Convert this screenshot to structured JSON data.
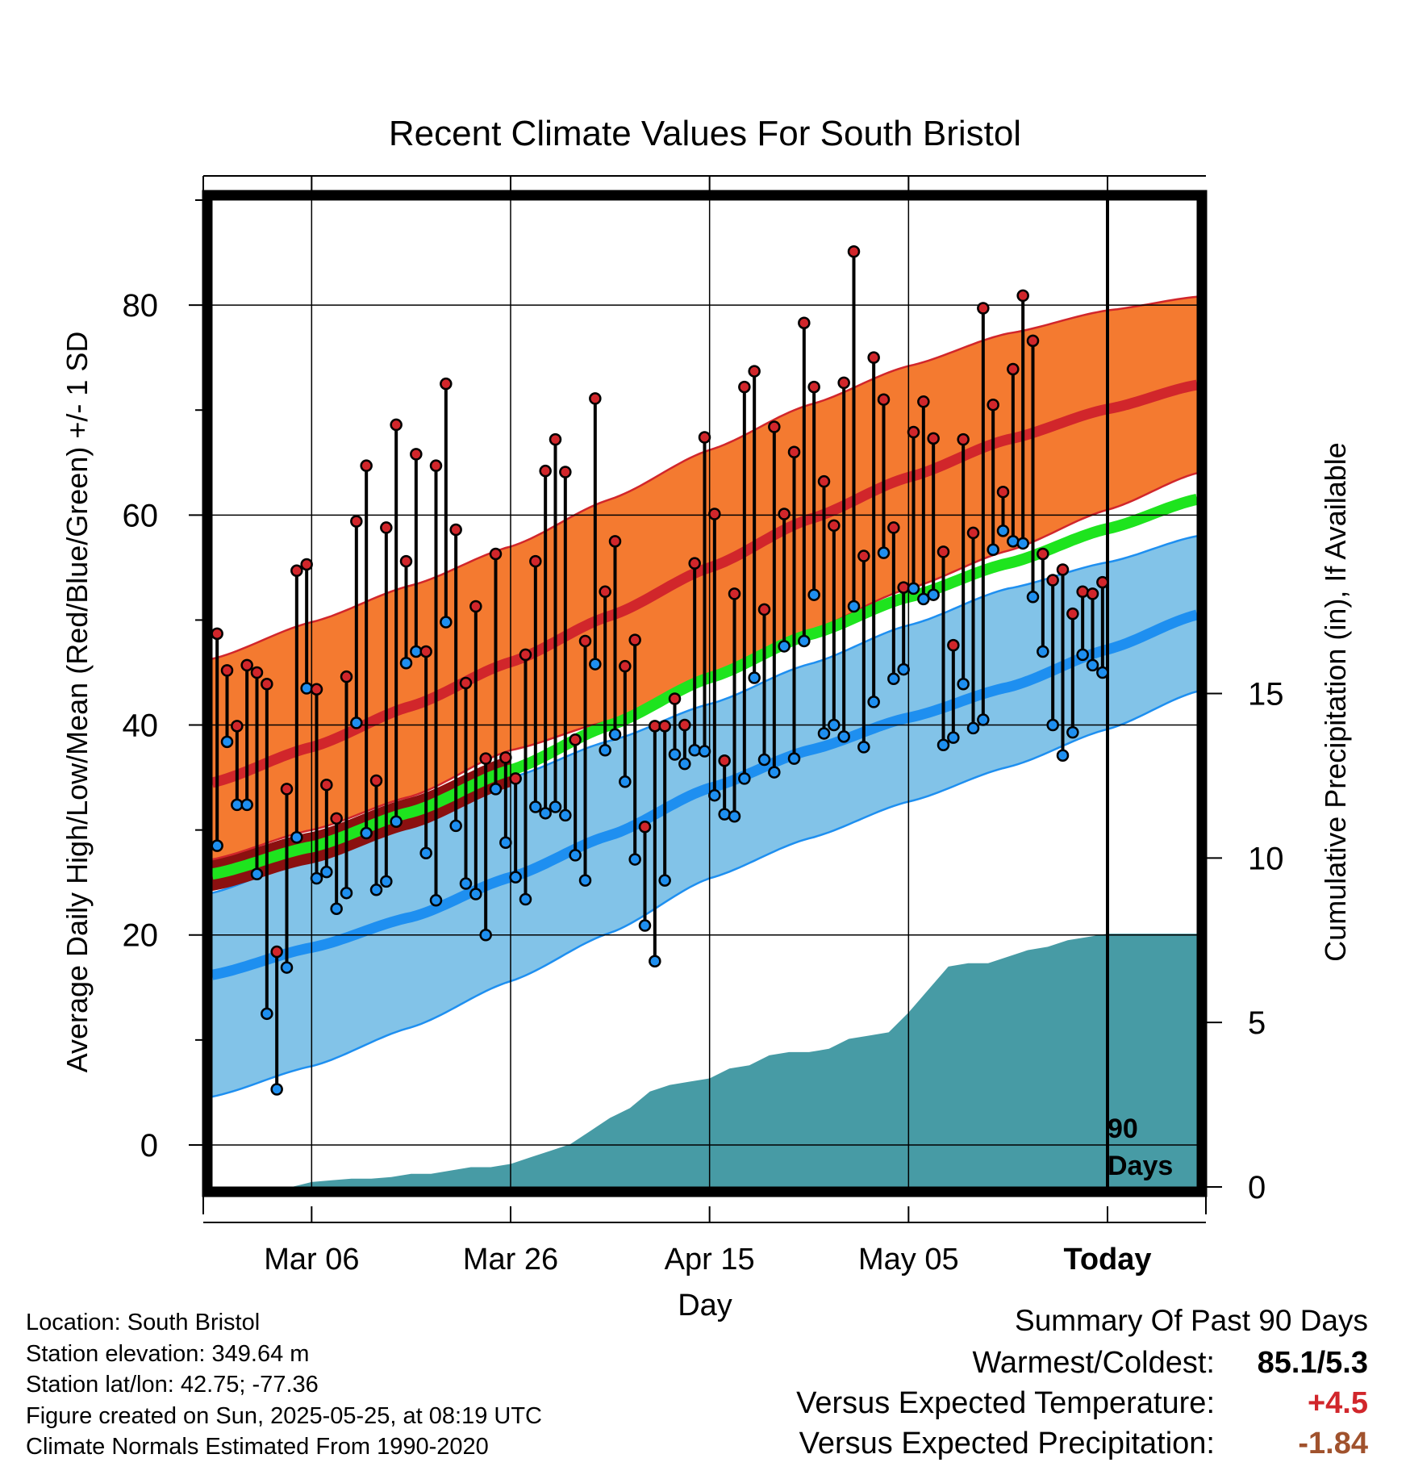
{
  "chart_data": {
    "type": "line",
    "title": "Recent Climate Values For South Bristol",
    "xlabel": "Day",
    "ylabel": "Average Daily High/Low/Mean (Red/Blue/Green) +/- 1 SD",
    "y2label": "Cumulative Precipitation (in), If Available",
    "ylim": [
      -4,
      90
    ],
    "y2lim": [
      0,
      30
    ],
    "y_ticks": [
      "0",
      "20",
      "40",
      "60",
      "80"
    ],
    "y2_ticks": [
      "0",
      "5",
      "10",
      "15"
    ],
    "x_tick_labels": [
      "Mar 06",
      "Mar 26",
      "Apr 15",
      "May 05",
      "Today"
    ],
    "x_tick_days": [
      10,
      30,
      50,
      70,
      90
    ],
    "x_range_days": [
      0,
      99
    ],
    "today_marker": "90\nDays",
    "grid": true,
    "normals": {
      "days": [
        0,
        10,
        20,
        30,
        40,
        50,
        60,
        70,
        80,
        90,
        99
      ],
      "high_mean": [
        34.5,
        37.9,
        41.8,
        46.0,
        50.4,
        55.0,
        59.6,
        63.6,
        67.2,
        70.1,
        72.4
      ],
      "high_sd_upper": [
        46.3,
        49.8,
        53.3,
        57.0,
        61.5,
        66.2,
        70.5,
        74.2,
        77.3,
        79.5,
        80.8
      ],
      "high_sd_lower": [
        27.2,
        30.0,
        33.2,
        37.6,
        40.4,
        44.5,
        49.0,
        53.0,
        56.6,
        60.5,
        64.0
      ],
      "low_mean": [
        16.2,
        18.8,
        21.7,
        25.5,
        29.5,
        34.0,
        37.6,
        40.7,
        43.6,
        47.2,
        50.5
      ],
      "low_sd_upper": [
        24.0,
        27.5,
        31.0,
        35.0,
        38.5,
        42.0,
        45.8,
        49.5,
        53.0,
        55.5,
        58.0
      ],
      "low_sd_lower": [
        4.6,
        7.5,
        11.2,
        15.6,
        20.2,
        25.4,
        29.2,
        32.7,
        36.0,
        39.6,
        43.2
      ],
      "mean_normal": [
        25.8,
        28.4,
        31.7,
        35.7,
        40.0,
        44.5,
        48.6,
        52.2,
        55.4,
        58.7,
        61.5
      ]
    },
    "observed": {
      "highs": [
        48.7,
        45.2,
        39.9,
        45.7,
        45.0,
        43.9,
        18.4,
        33.9,
        54.7,
        55.3,
        43.4,
        34.3,
        31.1,
        44.6,
        59.4,
        64.7,
        34.7,
        58.8,
        68.6,
        55.6,
        65.8,
        47.0,
        64.7,
        72.5,
        58.6,
        44.0,
        51.3,
        36.8,
        56.3,
        36.9,
        34.9,
        46.7,
        55.6,
        64.2,
        67.2,
        64.1,
        38.6,
        48.0,
        71.1,
        52.7,
        57.5,
        45.6,
        48.1,
        30.3,
        39.9,
        39.9,
        42.5,
        40.0,
        55.4,
        67.4,
        60.1,
        36.6,
        52.5,
        72.2,
        73.7,
        51.0,
        68.4,
        60.1,
        66.0,
        78.3,
        72.2,
        63.2,
        59.0,
        72.6,
        85.1,
        56.1,
        75.0,
        71.0,
        58.8,
        53.1,
        67.9,
        70.8,
        67.3,
        56.5,
        47.6,
        67.2,
        58.3,
        79.7,
        70.5,
        62.2,
        73.9,
        80.9,
        76.6,
        56.3,
        53.8,
        54.8,
        50.6,
        52.7,
        52.5,
        53.6
      ],
      "lows": [
        28.5,
        38.4,
        32.4,
        32.4,
        25.8,
        12.5,
        5.3,
        16.9,
        29.3,
        43.5,
        25.4,
        26.0,
        22.5,
        24.0,
        40.2,
        29.7,
        24.3,
        25.1,
        30.8,
        45.9,
        47.0,
        27.8,
        23.3,
        49.8,
        30.4,
        24.9,
        23.9,
        20.0,
        33.9,
        28.8,
        25.5,
        23.4,
        32.2,
        31.6,
        32.2,
        31.4,
        27.6,
        25.2,
        45.8,
        37.6,
        39.1,
        34.6,
        27.2,
        20.9,
        17.5,
        25.2,
        37.2,
        36.3,
        37.6,
        37.5,
        33.3,
        31.5,
        31.3,
        34.9,
        44.5,
        36.7,
        35.5,
        47.5,
        36.8,
        48.0,
        52.4,
        39.2,
        40.0,
        38.9,
        51.3,
        37.9,
        42.2,
        56.4,
        44.4,
        45.3,
        53.0,
        52.0,
        52.4,
        38.1,
        38.8,
        43.9,
        39.7,
        40.5,
        56.7,
        58.5,
        57.5,
        57.3,
        52.2,
        47.0,
        40.0,
        37.1,
        39.3,
        46.7,
        45.7,
        45.0
      ]
    },
    "precip": {
      "days": [
        0,
        8,
        10,
        12,
        14,
        16,
        18,
        20,
        22,
        24,
        26,
        28,
        30,
        32,
        34,
        36,
        38,
        40,
        42,
        44,
        46,
        48,
        50,
        52,
        54,
        56,
        58,
        60,
        62,
        64,
        66,
        68,
        70,
        72,
        74,
        76,
        78,
        80,
        82,
        84,
        86,
        88,
        90,
        99
      ],
      "cumulative": [
        0.0,
        0.0,
        0.15,
        0.2,
        0.25,
        0.25,
        0.3,
        0.4,
        0.4,
        0.5,
        0.6,
        0.6,
        0.7,
        0.9,
        1.1,
        1.3,
        1.7,
        2.1,
        2.4,
        2.9,
        3.1,
        3.2,
        3.3,
        3.6,
        3.7,
        4.0,
        4.1,
        4.1,
        4.2,
        4.5,
        4.6,
        4.7,
        5.3,
        6.0,
        6.7,
        6.8,
        6.8,
        7.0,
        7.2,
        7.3,
        7.5,
        7.6,
        7.7,
        7.7
      ]
    }
  },
  "info": {
    "location": "Location: South Bristol",
    "elevation": "Station elevation: 349.64 m",
    "latlon": "Station lat/lon: 42.75; -77.36",
    "created": "Figure created on Sun, 2025-05-25, at 08:19 UTC",
    "normals": "Climate Normals Estimated From 1990-2020"
  },
  "summary": {
    "title": "Summary Of Past 90 Days",
    "warmest_coldest_label": "Warmest/Coldest:",
    "warmest_coldest_value": "85.1/5.3",
    "temp_label": "Versus Expected Temperature:",
    "temp_value": "+4.5",
    "temp_color": "#d1262b",
    "precip_label": "Versus Expected Precipitation:",
    "precip_value": "-1.84",
    "precip_color": "#a0522d"
  },
  "colors": {
    "high_band": "#f47a30",
    "high_line": "#d1262b",
    "low_band": "#82c3e8",
    "low_line": "#1e8ff0",
    "mean_line": "#1ee41e",
    "mean_band_dark": "#8b1010",
    "precip_fill": "#479ba5",
    "high_dot": "#d1262b",
    "low_dot": "#1e8ff0"
  }
}
